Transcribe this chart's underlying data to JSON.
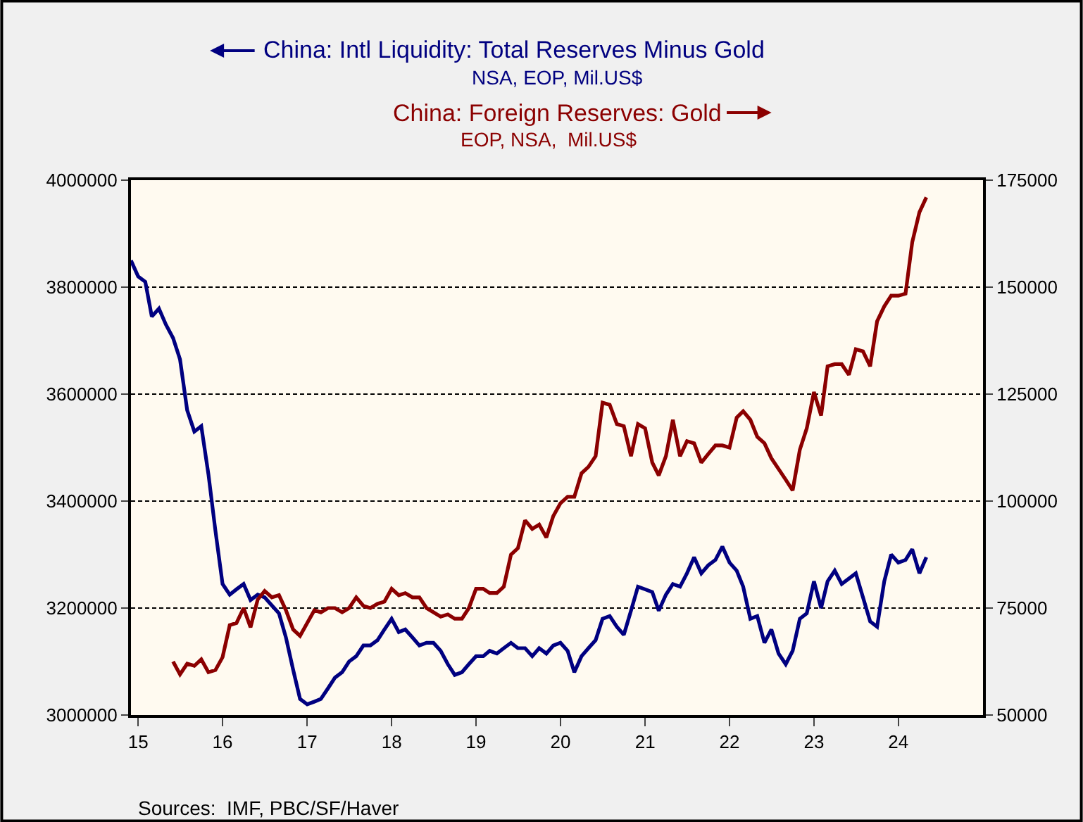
{
  "chart_data": {
    "type": "line",
    "series": [
      {
        "name": "China: Intl Liquidity: Total Reserves Minus Gold",
        "color": "#000080",
        "axis": "y",
        "x": [
          "2014-12",
          "2015-01",
          "2015-02",
          "2015-03",
          "2015-04",
          "2015-05",
          "2015-06",
          "2015-07",
          "2015-08",
          "2015-09",
          "2015-10",
          "2015-11",
          "2015-12",
          "2016-01",
          "2016-02",
          "2016-03",
          "2016-04",
          "2016-05",
          "2016-06",
          "2016-07",
          "2016-08",
          "2016-09",
          "2016-10",
          "2016-11",
          "2016-12",
          "2017-01",
          "2017-02",
          "2017-03",
          "2017-04",
          "2017-05",
          "2017-06",
          "2017-07",
          "2017-08",
          "2017-09",
          "2017-10",
          "2017-11",
          "2017-12",
          "2018-01",
          "2018-02",
          "2018-03",
          "2018-04",
          "2018-05",
          "2018-06",
          "2018-07",
          "2018-08",
          "2018-09",
          "2018-10",
          "2018-11",
          "2018-12",
          "2019-01",
          "2019-02",
          "2019-03",
          "2019-04",
          "2019-05",
          "2019-06",
          "2019-07",
          "2019-08",
          "2019-09",
          "2019-10",
          "2019-11",
          "2019-12",
          "2020-01",
          "2020-02",
          "2020-03",
          "2020-04",
          "2020-05",
          "2020-06",
          "2020-07",
          "2020-08",
          "2020-09",
          "2020-10",
          "2020-11",
          "2020-12",
          "2021-01",
          "2021-02",
          "2021-03",
          "2021-04",
          "2021-05",
          "2021-06",
          "2021-07",
          "2021-08",
          "2021-09",
          "2021-10",
          "2021-11",
          "2021-12",
          "2022-01",
          "2022-02",
          "2022-03",
          "2022-04",
          "2022-05",
          "2022-06",
          "2022-07",
          "2022-08",
          "2022-09",
          "2022-10",
          "2022-11",
          "2022-12",
          "2023-01",
          "2023-02",
          "2023-03",
          "2023-04",
          "2023-05",
          "2023-06",
          "2023-07",
          "2023-08",
          "2023-09",
          "2023-10",
          "2023-11",
          "2023-12",
          "2024-01",
          "2024-02",
          "2024-03",
          "2024-04",
          "2024-05"
        ],
        "values": [
          3850000,
          3820000,
          3810000,
          3745000,
          3760000,
          3730000,
          3705000,
          3665000,
          3570000,
          3530000,
          3540000,
          3450000,
          3345000,
          3245000,
          3225000,
          3235000,
          3245000,
          3215000,
          3225000,
          3220000,
          3205000,
          3190000,
          3145000,
          3085000,
          3030000,
          3020000,
          3025000,
          3030000,
          3050000,
          3070000,
          3080000,
          3100000,
          3110000,
          3130000,
          3130000,
          3140000,
          3160000,
          3180000,
          3155000,
          3160000,
          3145000,
          3130000,
          3135000,
          3135000,
          3120000,
          3095000,
          3075000,
          3080000,
          3095000,
          3110000,
          3110000,
          3120000,
          3115000,
          3125000,
          3135000,
          3125000,
          3125000,
          3110000,
          3125000,
          3115000,
          3130000,
          3135000,
          3120000,
          3080000,
          3110000,
          3125000,
          3140000,
          3180000,
          3185000,
          3165000,
          3150000,
          3195000,
          3240000,
          3235000,
          3230000,
          3195000,
          3225000,
          3245000,
          3240000,
          3265000,
          3295000,
          3265000,
          3280000,
          3290000,
          3315000,
          3285000,
          3270000,
          3240000,
          3180000,
          3185000,
          3135000,
          3160000,
          3115000,
          3095000,
          3120000,
          3180000,
          3190000,
          3250000,
          3200000,
          3250000,
          3270000,
          3245000,
          3255000,
          3265000,
          3220000,
          3175000,
          3165000,
          3250000,
          3300000,
          3285000,
          3290000,
          3310000,
          3265000,
          3295000
        ]
      },
      {
        "name": "China: Foreign Reserves: Gold",
        "color": "#8b0000",
        "axis": "y2",
        "x": [
          "2015-06",
          "2015-07",
          "2015-08",
          "2015-09",
          "2015-10",
          "2015-11",
          "2015-12",
          "2016-01",
          "2016-02",
          "2016-03",
          "2016-04",
          "2016-05",
          "2016-06",
          "2016-07",
          "2016-08",
          "2016-09",
          "2016-10",
          "2016-11",
          "2016-12",
          "2017-01",
          "2017-02",
          "2017-03",
          "2017-04",
          "2017-05",
          "2017-06",
          "2017-07",
          "2017-08",
          "2017-09",
          "2017-10",
          "2017-11",
          "2017-12",
          "2018-01",
          "2018-02",
          "2018-03",
          "2018-04",
          "2018-05",
          "2018-06",
          "2018-07",
          "2018-08",
          "2018-09",
          "2018-10",
          "2018-11",
          "2018-12",
          "2019-01",
          "2019-02",
          "2019-03",
          "2019-04",
          "2019-05",
          "2019-06",
          "2019-07",
          "2019-08",
          "2019-09",
          "2019-10",
          "2019-11",
          "2019-12",
          "2020-01",
          "2020-02",
          "2020-03",
          "2020-04",
          "2020-05",
          "2020-06",
          "2020-07",
          "2020-08",
          "2020-09",
          "2020-10",
          "2020-11",
          "2020-12",
          "2021-01",
          "2021-02",
          "2021-03",
          "2021-04",
          "2021-05",
          "2021-06",
          "2021-07",
          "2021-08",
          "2021-09",
          "2021-10",
          "2021-11",
          "2021-12",
          "2022-01",
          "2022-02",
          "2022-03",
          "2022-04",
          "2022-05",
          "2022-06",
          "2022-07",
          "2022-08",
          "2022-09",
          "2022-10",
          "2022-11",
          "2022-12",
          "2023-01",
          "2023-02",
          "2023-03",
          "2023-04",
          "2023-05",
          "2023-06",
          "2023-07",
          "2023-08",
          "2023-09",
          "2023-10",
          "2023-11",
          "2023-12",
          "2024-01",
          "2024-02",
          "2024-03",
          "2024-04",
          "2024-05"
        ],
        "values": [
          62500,
          59500,
          62000,
          61500,
          63000,
          60000,
          60500,
          63500,
          71000,
          71500,
          75000,
          70500,
          77000,
          79000,
          77500,
          78000,
          74500,
          70000,
          68500,
          71500,
          74500,
          74000,
          75000,
          75000,
          74000,
          75000,
          77500,
          75500,
          75000,
          76000,
          76500,
          79500,
          78000,
          78500,
          77500,
          77500,
          75000,
          74000,
          73000,
          73500,
          72500,
          72500,
          75000,
          79500,
          79500,
          78500,
          78500,
          80000,
          87500,
          89000,
          95500,
          93500,
          94500,
          91500,
          96500,
          99500,
          101000,
          101000,
          106500,
          108000,
          110500,
          123000,
          122500,
          118000,
          117500,
          110500,
          118000,
          117000,
          109000,
          106000,
          110500,
          119000,
          110500,
          114000,
          113500,
          109000,
          111000,
          113000,
          113000,
          112500,
          119500,
          121000,
          119000,
          115000,
          113500,
          110000,
          107500,
          105000,
          102500,
          112000,
          117000,
          125500,
          120000,
          131500,
          132000,
          132000,
          129500,
          135500,
          135000,
          131500,
          142000,
          145500,
          148000,
          148000,
          148500,
          160500,
          167500,
          171000
        ]
      }
    ],
    "xlim": [
      "2014-12",
      "2025-01"
    ],
    "xticks": [
      {
        "value": "2015-01",
        "label": "15"
      },
      {
        "value": "2016-01",
        "label": "16"
      },
      {
        "value": "2017-01",
        "label": "17"
      },
      {
        "value": "2018-01",
        "label": "18"
      },
      {
        "value": "2019-01",
        "label": "19"
      },
      {
        "value": "2020-01",
        "label": "20"
      },
      {
        "value": "2021-01",
        "label": "21"
      },
      {
        "value": "2022-01",
        "label": "22"
      },
      {
        "value": "2023-01",
        "label": "23"
      },
      {
        "value": "2024-01",
        "label": "24"
      }
    ],
    "ylim": [
      3000000,
      4000000
    ],
    "yticks": [
      3000000,
      3200000,
      3400000,
      3600000,
      3800000,
      4000000
    ],
    "y2lim": [
      50000,
      175000
    ],
    "y2ticks": [
      50000,
      75000,
      100000,
      125000,
      150000,
      175000
    ],
    "grid": "y",
    "line_style": "solid",
    "annotations": [
      "NSA, EOP, Mil.US$",
      "EOP, NSA,  Mil.US$",
      "Sources:  IMF, PBC/SF/Haver"
    ]
  }
}
